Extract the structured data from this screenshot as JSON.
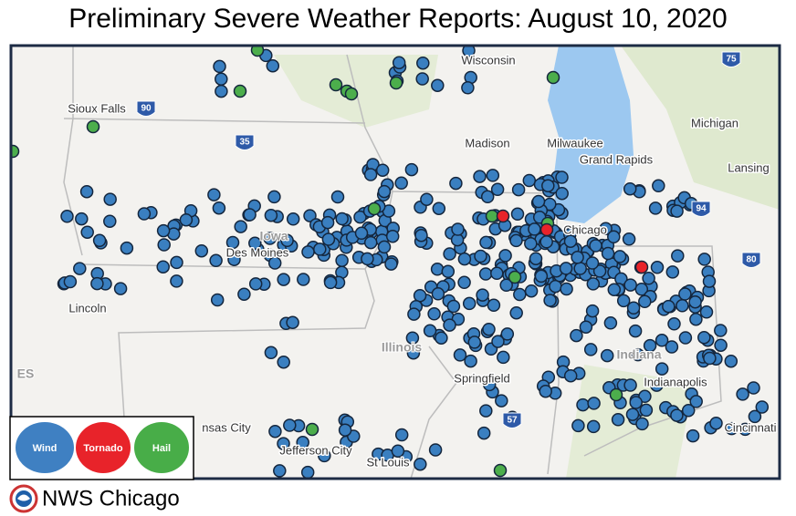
{
  "header": {
    "title": "Preliminary Severe Weather Reports:  August 10, 2020"
  },
  "map": {
    "labels": [
      "Wisconsin",
      "Sioux Falls",
      "Madison",
      "Milwaukee",
      "Grand Rapids",
      "Michigan",
      "Lansing",
      "Chicago",
      "Iowa",
      "Des Moines",
      "Lincoln",
      "Illinois",
      "Springfield",
      "Indiana",
      "Indianapolis",
      "nsas City",
      "Jefferson City",
      "St Louis",
      "Cincinnati",
      "ES"
    ],
    "shields": [
      "90",
      "35",
      "75",
      "94",
      "80",
      "57"
    ]
  },
  "legend": {
    "items": [
      "Wind",
      "Tornado",
      "Hail"
    ]
  },
  "footer": {
    "text": "NWS Chicago"
  }
}
